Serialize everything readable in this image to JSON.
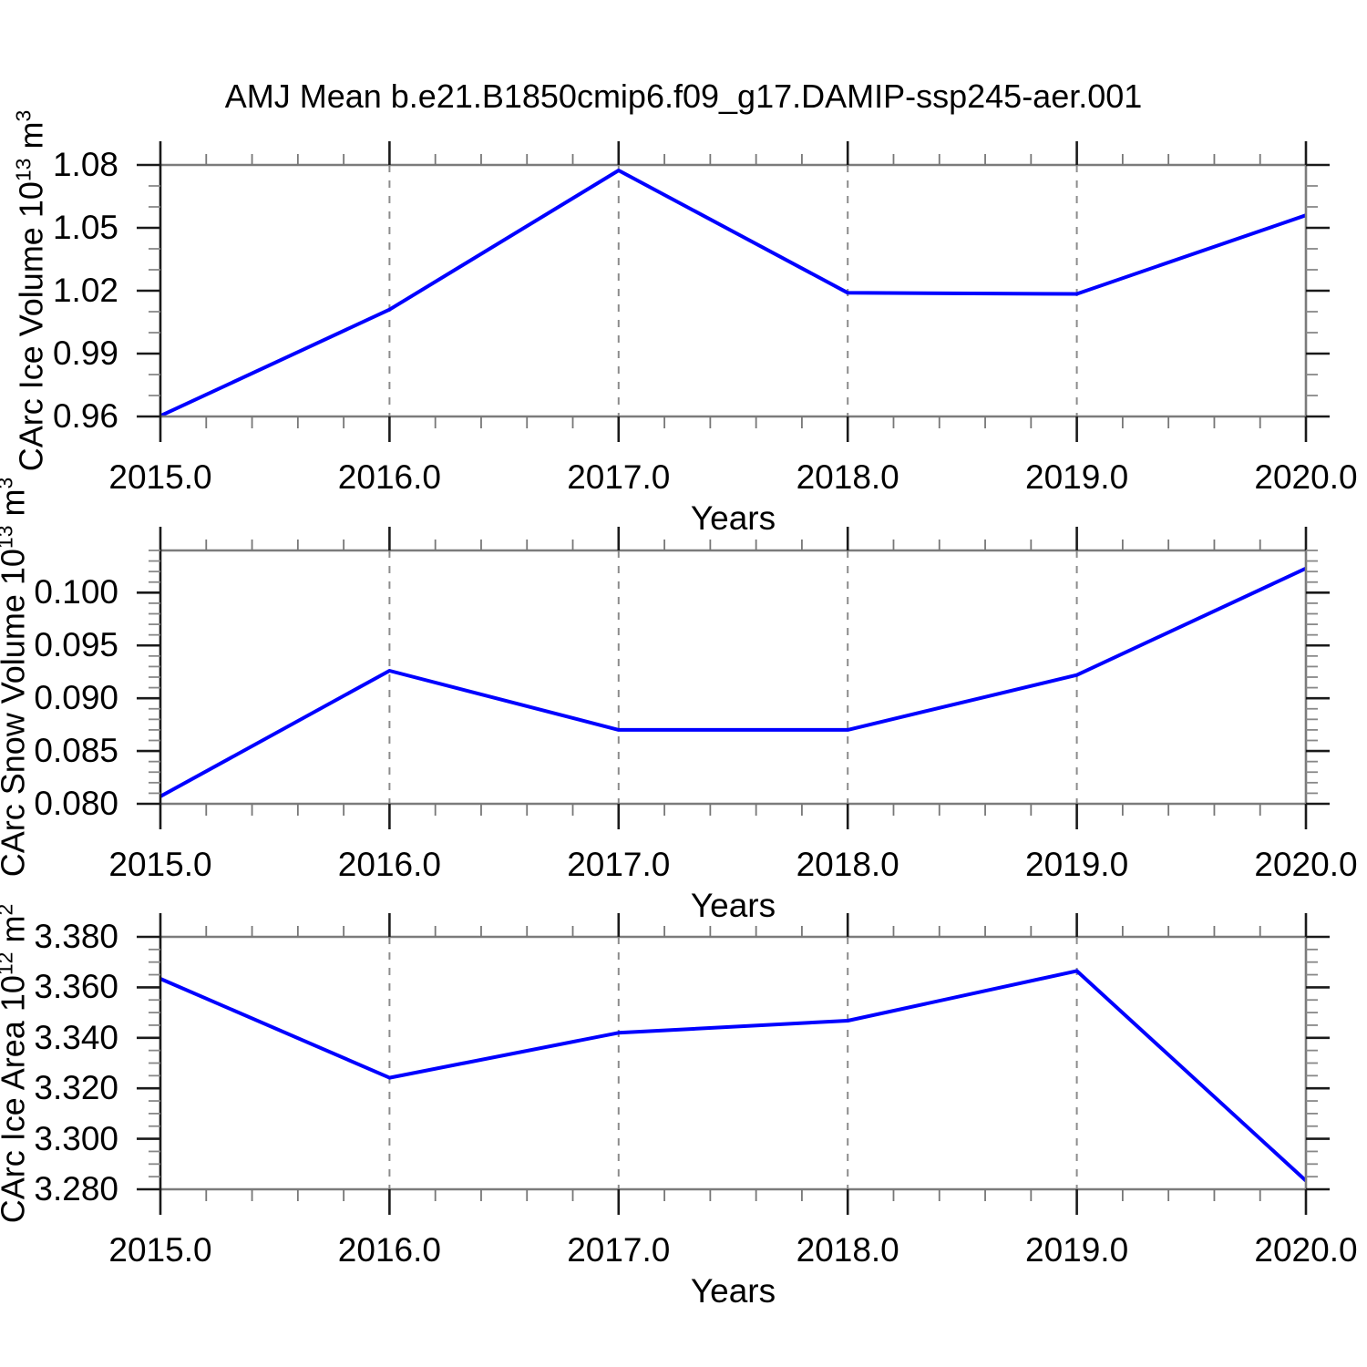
{
  "title": "AMJ Mean b.e21.B1850cmip6.f09_g17.DAMIP-ssp245-aer.001",
  "line_color": "#0000ff",
  "grid_color": "#8c8c8c",
  "chart_data": [
    {
      "type": "line",
      "name": "CArc Ice Volume",
      "x": [
        2015,
        2016,
        2017,
        2018,
        2019,
        2020
      ],
      "values": [
        0.9603,
        1.011,
        1.0774,
        1.019,
        1.0185,
        1.056
      ],
      "xlabel": "Years",
      "ylabel": {
        "text": "CArc Ice Volume 10",
        "sup1": "13",
        "unit": " m",
        "sup2": "3"
      },
      "xlim": [
        2015,
        2020
      ],
      "ylim": [
        0.96,
        1.08
      ],
      "xticks": [
        2015,
        2016,
        2017,
        2018,
        2019,
        2020
      ],
      "xtick_labels": [
        "2015.0",
        "2016.0",
        "2017.0",
        "2018.0",
        "2019.0",
        "2020.0"
      ],
      "x_minor_step": 0.2,
      "yticks": [
        0.96,
        0.99,
        1.02,
        1.05,
        1.08
      ],
      "ytick_labels": [
        "0.96",
        "0.99",
        "1.02",
        "1.05",
        "1.08"
      ],
      "y_minor_step": 0.01,
      "grid_x": [
        2016,
        2017,
        2018,
        2019
      ],
      "legend": "none"
    },
    {
      "type": "line",
      "name": "CArc Snow Volume",
      "x": [
        2015,
        2016,
        2017,
        2018,
        2019,
        2020
      ],
      "values": [
        0.0807,
        0.0926,
        0.087,
        0.087,
        0.0922,
        0.1023
      ],
      "xlabel": "Years",
      "ylabel": {
        "text": "CArc Snow Volume 10",
        "sup1": "13",
        "unit": " m",
        "sup2": "3"
      },
      "xlim": [
        2015,
        2020
      ],
      "ylim": [
        0.08,
        0.104
      ],
      "xticks": [
        2015,
        2016,
        2017,
        2018,
        2019,
        2020
      ],
      "xtick_labels": [
        "2015.0",
        "2016.0",
        "2017.0",
        "2018.0",
        "2019.0",
        "2020.0"
      ],
      "x_minor_step": 0.2,
      "yticks": [
        0.08,
        0.085,
        0.09,
        0.095,
        0.1
      ],
      "ytick_labels": [
        "0.080",
        "0.085",
        "0.090",
        "0.095",
        "0.100"
      ],
      "y_minor_step": 0.001,
      "grid_x": [
        2016,
        2017,
        2018,
        2019
      ],
      "legend": "none"
    },
    {
      "type": "line",
      "name": "CArc Ice Area",
      "x": [
        2015,
        2016,
        2017,
        2018,
        2019,
        2020
      ],
      "values": [
        3.3634,
        3.3242,
        3.342,
        3.3468,
        3.3665,
        3.2834
      ],
      "xlabel": "Years",
      "ylabel": {
        "text": "CArc Ice Area 10",
        "sup1": "12",
        "unit": " m",
        "sup2": "2"
      },
      "xlim": [
        2015,
        2020
      ],
      "ylim": [
        3.28,
        3.38
      ],
      "xticks": [
        2015,
        2016,
        2017,
        2018,
        2019,
        2020
      ],
      "xtick_labels": [
        "2015.0",
        "2016.0",
        "2017.0",
        "2018.0",
        "2019.0",
        "2020.0"
      ],
      "x_minor_step": 0.2,
      "yticks": [
        3.28,
        3.3,
        3.32,
        3.34,
        3.36,
        3.38
      ],
      "ytick_labels": [
        "3.280",
        "3.300",
        "3.320",
        "3.340",
        "3.360",
        "3.380"
      ],
      "y_minor_step": 0.005,
      "grid_x": [
        2016,
        2017,
        2018,
        2019
      ],
      "legend": "none"
    }
  ]
}
